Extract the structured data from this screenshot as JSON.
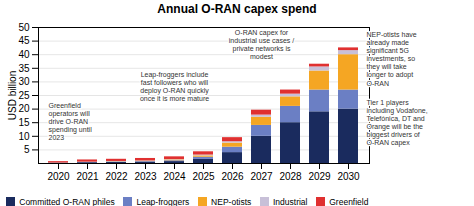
{
  "chart_data": {
    "type": "bar",
    "stacked": true,
    "title": "Annual O-RAN capex spend",
    "ylabel": "USD billion",
    "categories": [
      "2020",
      "2021",
      "2022",
      "2023",
      "2024",
      "2025",
      "2026",
      "2027",
      "2028",
      "2029",
      "2030"
    ],
    "series": [
      {
        "name": "Committed O-RAN philes",
        "color": "#1a2b5e",
        "values": [
          0.1,
          0.3,
          0.4,
          0.5,
          0.7,
          1.5,
          4.0,
          10.0,
          15.0,
          19.0,
          20.0
        ]
      },
      {
        "name": "Leap-froggers",
        "color": "#6b7fc4",
        "values": [
          0.05,
          0.1,
          0.15,
          0.2,
          0.3,
          0.8,
          2.0,
          4.0,
          6.0,
          8.0,
          7.0
        ]
      },
      {
        "name": "NEP-otists",
        "color": "#f5a623",
        "values": [
          0.02,
          0.05,
          0.1,
          0.15,
          0.3,
          0.5,
          1.5,
          3.0,
          3.5,
          7.0,
          13.0
        ]
      },
      {
        "name": "Industrial",
        "color": "#c8c0d8",
        "values": [
          0.01,
          0.05,
          0.1,
          0.1,
          0.15,
          0.3,
          0.5,
          0.8,
          1.0,
          1.5,
          1.5
        ]
      },
      {
        "name": "Greenfield",
        "color": "#e03030",
        "values": [
          0.5,
          0.8,
          0.8,
          0.9,
          1.0,
          1.2,
          1.5,
          1.8,
          1.5,
          1.0,
          1.0
        ]
      }
    ],
    "ylim": [
      0,
      50
    ],
    "yticks": [
      5,
      10,
      15,
      20,
      25,
      30,
      35,
      40,
      45,
      50
    ],
    "grid": true,
    "legend": "bottom",
    "annotations": [
      "Greenfield\noperators will\ndrive O-RAN\nspending until\n2023",
      "Leap-froggers include\nfast followers who will\ndeploy O-RAN quickly\nonce it is more mature",
      "O-RAN capex for\nindustrial use cases /\nprivate networks is\nmodest",
      "NEP-otists have\nalready made\nsignificant 5G\ninvestments, so\nthey will take\nlonger to adopt\nO-RAN",
      "Tier 1 players\nincluding Vodafone,\nTelefónica, DT and\nOrange will be the\nbiggest drivers of\nO-RAN capex"
    ]
  }
}
